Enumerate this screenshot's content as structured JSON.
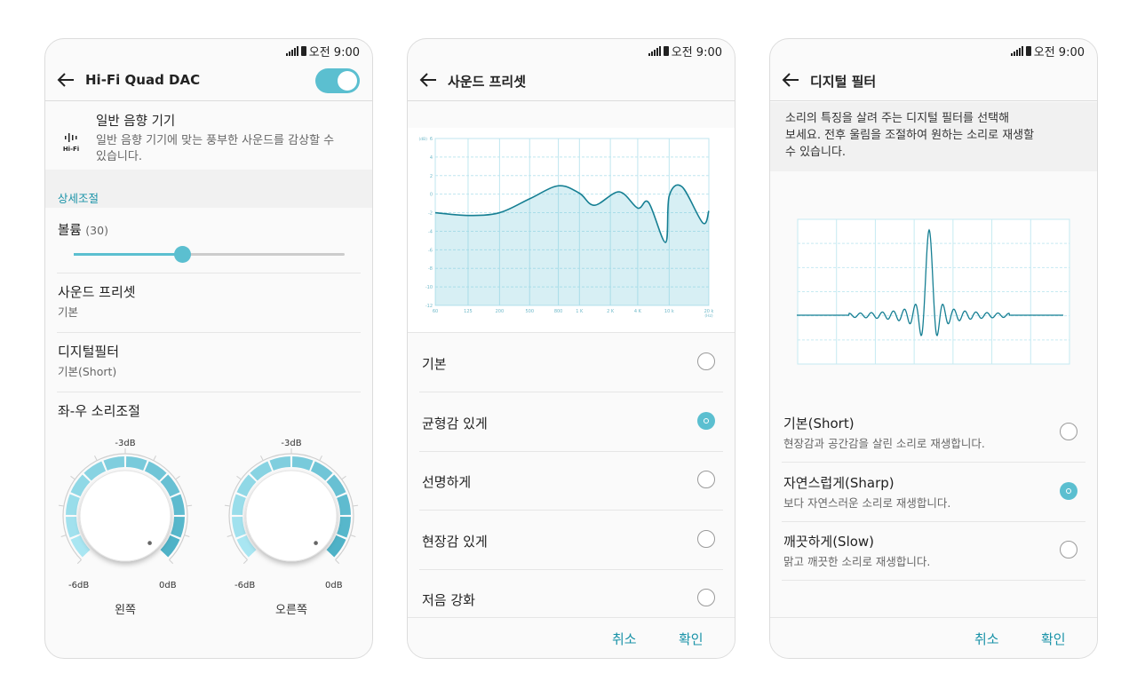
{
  "status": {
    "time": "오전 9:00"
  },
  "accent": "#5bbfd0",
  "accent_text": "#1a93a8",
  "curve_color": "#167f93",
  "screen1": {
    "title": "Hi-Fi Quad DAC",
    "toggle_on": true,
    "mode": {
      "icon": "hifi-icon",
      "icon_label": "Hi-Fi",
      "title": "일반 음향 기기",
      "desc1": "일반 음향 기기에 맞는 풍부한 사운드를 감상할 수",
      "desc2": "있습니다."
    },
    "section": "상세조절",
    "volume": {
      "label": "볼륨",
      "value": "(30)",
      "fraction": 0.4
    },
    "preset": {
      "label": "사운드 프리셋",
      "value": "기본"
    },
    "filter": {
      "label": "디지털필터",
      "value": "기본(Short)"
    },
    "balance": {
      "label": "좌-우 소리조절",
      "knobs": [
        {
          "name": "왼쪽",
          "min": "-6dB",
          "mid": "-3dB",
          "max": "0dB",
          "value_db": 0
        },
        {
          "name": "오른쪽",
          "min": "-6dB",
          "mid": "-3dB",
          "max": "0dB",
          "value_db": 0
        }
      ]
    }
  },
  "screen2": {
    "title": "사운드 프리셋",
    "chart_data": {
      "type": "area",
      "ylabel": "(dB)",
      "xlabel": "(Hz)",
      "ylim": [
        -12,
        6
      ],
      "yticks": [
        6,
        4,
        2,
        0,
        -2,
        -4,
        -6,
        -8,
        -10,
        -12
      ],
      "xtick_labels": [
        "60",
        "125",
        "200",
        "500",
        "800",
        "1 K",
        "2 K",
        "4 K",
        "10 k",
        "20 k"
      ],
      "xtick_values": [
        60,
        125,
        200,
        500,
        800,
        1000,
        2000,
        4000,
        10000,
        20000
      ],
      "points": [
        [
          60,
          -2.0
        ],
        [
          125,
          -2.3
        ],
        [
          200,
          -2.0
        ],
        [
          500,
          -0.5
        ],
        [
          800,
          0.9
        ],
        [
          1000,
          0.1
        ],
        [
          1400,
          -1.2
        ],
        [
          2500,
          0.25
        ],
        [
          4000,
          -1.5
        ],
        [
          5500,
          -0.9
        ],
        [
          9000,
          -5.2
        ],
        [
          10000,
          -0.2
        ],
        [
          12500,
          0.8
        ],
        [
          18000,
          -3.1
        ],
        [
          20000,
          -1.8
        ]
      ],
      "grid": true
    },
    "options": [
      {
        "label": "기본",
        "selected": false
      },
      {
        "label": "균형감 있게",
        "selected": true
      },
      {
        "label": "선명하게",
        "selected": false
      },
      {
        "label": "현장감 있게",
        "selected": false
      },
      {
        "label": "저음 강화",
        "selected": false
      }
    ],
    "cancel": "취소",
    "ok": "확인"
  },
  "screen3": {
    "title": "디지털 필터",
    "desc": [
      "소리의 특징을 살려 주는 디지털 필터를 선택해",
      "보세요. 전후 울림을 조절하여 원하는 소리로 재생할",
      "수 있습니다."
    ],
    "options": [
      {
        "label": "기본(Short)",
        "desc": "현장감과 공간감을 살린 소리로 재생합니다.",
        "selected": false
      },
      {
        "label": "자연스럽게(Sharp)",
        "desc": "보다 자연스러운 소리로 재생합니다.",
        "selected": true
      },
      {
        "label": "깨끗하게(Slow)",
        "desc": "맑고 깨끗한 소리로 재생합니다.",
        "selected": false
      }
    ],
    "cancel": "취소",
    "ok": "확인"
  }
}
